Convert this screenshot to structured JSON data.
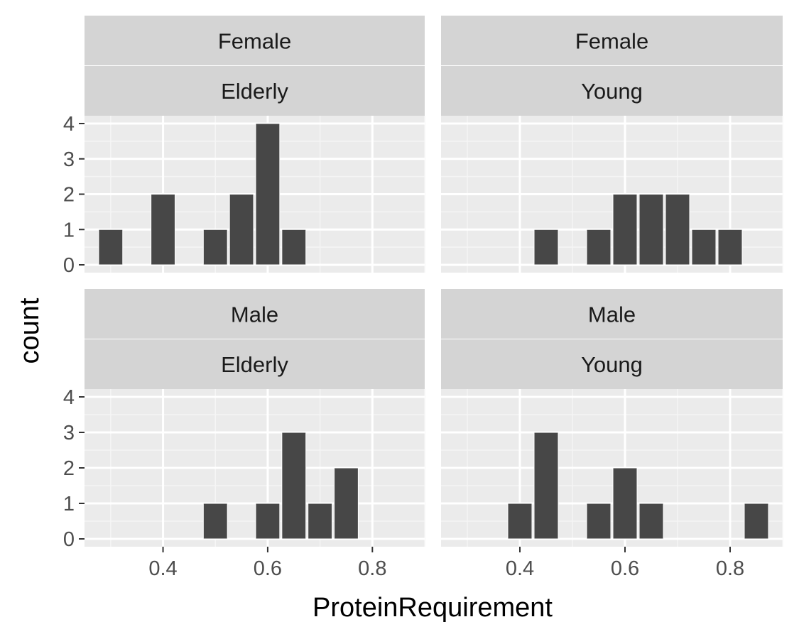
{
  "chart_data": {
    "type": "bar",
    "xlabel": "ProteinRequirement",
    "ylabel": "count",
    "xlim": [
      0.25,
      0.9
    ],
    "ylim": [
      0,
      4
    ],
    "x_ticks": [
      0.4,
      0.6,
      0.8
    ],
    "x_tick_labels": [
      "0.4",
      "0.6",
      "0.8"
    ],
    "y_ticks": [
      0,
      1,
      2,
      3,
      4
    ],
    "y_tick_labels": [
      "0",
      "1",
      "2",
      "3",
      "4"
    ],
    "bin_width": 0.05,
    "bar_color": "#474747",
    "panel_background": "#ebebeb",
    "strip_background": "#d4d4d4",
    "grid": true,
    "facets": [
      {
        "labels": [
          "Female",
          "Elderly"
        ],
        "bins": [
          {
            "x": 0.3,
            "count": 1
          },
          {
            "x": 0.4,
            "count": 2
          },
          {
            "x": 0.5,
            "count": 1
          },
          {
            "x": 0.55,
            "count": 2
          },
          {
            "x": 0.6,
            "count": 4
          },
          {
            "x": 0.65,
            "count": 1
          }
        ]
      },
      {
        "labels": [
          "Female",
          "Young"
        ],
        "bins": [
          {
            "x": 0.45,
            "count": 1
          },
          {
            "x": 0.55,
            "count": 1
          },
          {
            "x": 0.6,
            "count": 2
          },
          {
            "x": 0.65,
            "count": 2
          },
          {
            "x": 0.7,
            "count": 2
          },
          {
            "x": 0.75,
            "count": 1
          },
          {
            "x": 0.8,
            "count": 1
          }
        ]
      },
      {
        "labels": [
          "Male",
          "Elderly"
        ],
        "bins": [
          {
            "x": 0.5,
            "count": 1
          },
          {
            "x": 0.6,
            "count": 1
          },
          {
            "x": 0.65,
            "count": 3
          },
          {
            "x": 0.7,
            "count": 1
          },
          {
            "x": 0.75,
            "count": 2
          }
        ]
      },
      {
        "labels": [
          "Male",
          "Young"
        ],
        "bins": [
          {
            "x": 0.4,
            "count": 1
          },
          {
            "x": 0.45,
            "count": 3
          },
          {
            "x": 0.55,
            "count": 1
          },
          {
            "x": 0.6,
            "count": 2
          },
          {
            "x": 0.65,
            "count": 1
          },
          {
            "x": 0.85,
            "count": 1
          }
        ]
      }
    ]
  }
}
